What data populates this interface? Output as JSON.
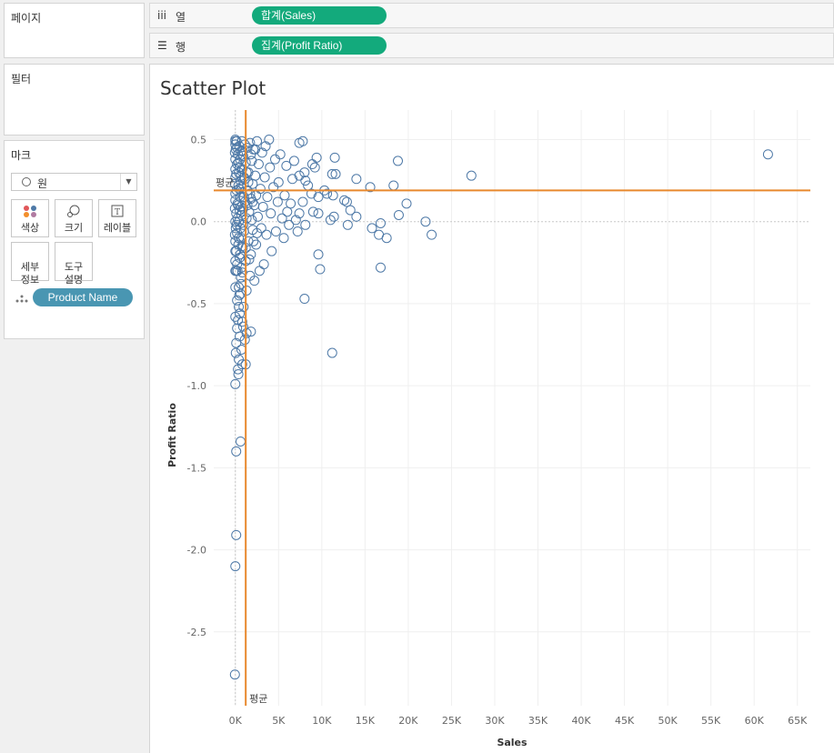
{
  "pages_panel": {
    "title": "페이지"
  },
  "filters_panel": {
    "title": "필터"
  },
  "marks_panel": {
    "title": "마크",
    "mark_type": "원",
    "buttons": [
      {
        "label": "색상",
        "icon": "color-dots-icon"
      },
      {
        "label": "크기",
        "icon": "size-bubble-icon"
      },
      {
        "label": "레이블",
        "icon": "label-T-icon"
      },
      {
        "label": "세부\n정보",
        "icon": ""
      },
      {
        "label": "도구\n설명",
        "icon": ""
      }
    ],
    "detail_field": "Product Name"
  },
  "shelves": {
    "columns": {
      "label": "열",
      "pill": "합계(Sales)"
    },
    "rows": {
      "label": "행",
      "pill": "집계(Profit Ratio)"
    }
  },
  "colors": {
    "pill_green": "#13aa7c",
    "pill_blue": "#4996b2",
    "marker": "#4e79a7",
    "ref_line": "#e8892e"
  },
  "chart_data": {
    "type": "scatter",
    "title": "Scatter Plot",
    "xlabel": "Sales",
    "ylabel": "Profit Ratio",
    "x_ticks": [
      "0K",
      "5K",
      "10K",
      "15K",
      "20K",
      "25K",
      "30K",
      "35K",
      "40K",
      "45K",
      "50K",
      "55K",
      "60K",
      "65K"
    ],
    "y_ticks": [
      "0.5",
      "0.0",
      "-0.5",
      "-1.0",
      "-1.5",
      "-2.0",
      "-2.5"
    ],
    "xlim": [
      -2500,
      66500
    ],
    "ylim": [
      -2.95,
      0.68
    ],
    "grid": true,
    "reference_lines": [
      {
        "axis": "x",
        "value": 1200,
        "label": "평균"
      },
      {
        "axis": "y",
        "value": 0.19,
        "label": "평균"
      }
    ],
    "points": [
      [
        61600,
        0.41
      ],
      [
        27300,
        0.28
      ],
      [
        22700,
        -0.08
      ],
      [
        22000,
        0.0
      ],
      [
        19800,
        0.11
      ],
      [
        18800,
        0.37
      ],
      [
        18900,
        0.04
      ],
      [
        18300,
        0.22
      ],
      [
        17500,
        -0.1
      ],
      [
        16800,
        -0.01
      ],
      [
        16600,
        -0.08
      ],
      [
        16800,
        -0.28
      ],
      [
        15800,
        -0.04
      ],
      [
        15600,
        0.21
      ],
      [
        14000,
        0.26
      ],
      [
        14000,
        0.03
      ],
      [
        13300,
        0.07
      ],
      [
        12900,
        0.12
      ],
      [
        13000,
        -0.02
      ],
      [
        12600,
        0.13
      ],
      [
        11400,
        0.03
      ],
      [
        11300,
        0.16
      ],
      [
        11200,
        0.29
      ],
      [
        11600,
        0.29
      ],
      [
        11500,
        0.39
      ],
      [
        11200,
        -0.8
      ],
      [
        10600,
        0.17
      ],
      [
        11000,
        0.01
      ],
      [
        10300,
        0.19
      ],
      [
        9600,
        0.05
      ],
      [
        9800,
        -0.29
      ],
      [
        9600,
        -0.2
      ],
      [
        9600,
        0.15
      ],
      [
        9400,
        0.39
      ],
      [
        9200,
        0.33
      ],
      [
        8900,
        0.35
      ],
      [
        9000,
        0.06
      ],
      [
        8800,
        0.17
      ],
      [
        8400,
        0.22
      ],
      [
        8100,
        -0.02
      ],
      [
        8100,
        0.25
      ],
      [
        7800,
        0.49
      ],
      [
        7400,
        0.48
      ],
      [
        8000,
        0.3
      ],
      [
        7800,
        0.12
      ],
      [
        7400,
        0.05
      ],
      [
        7200,
        -0.06
      ],
      [
        7000,
        0.01
      ],
      [
        8000,
        -0.47
      ],
      [
        7400,
        0.28
      ],
      [
        6800,
        0.37
      ],
      [
        6600,
        0.26
      ],
      [
        6400,
        0.11
      ],
      [
        6200,
        -0.02
      ],
      [
        6000,
        0.06
      ],
      [
        5900,
        0.34
      ],
      [
        5700,
        0.16
      ],
      [
        5600,
        -0.1
      ],
      [
        5400,
        0.02
      ],
      [
        5200,
        0.41
      ],
      [
        5000,
        0.24
      ],
      [
        4900,
        0.12
      ],
      [
        4700,
        -0.06
      ],
      [
        4600,
        0.38
      ],
      [
        4400,
        0.21
      ],
      [
        4200,
        -0.18
      ],
      [
        4100,
        0.05
      ],
      [
        4000,
        0.33
      ],
      [
        3900,
        0.5
      ],
      [
        3700,
        0.15
      ],
      [
        3600,
        -0.08
      ],
      [
        3500,
        0.46
      ],
      [
        3400,
        0.27
      ],
      [
        3300,
        -0.26
      ],
      [
        3200,
        0.09
      ],
      [
        3100,
        0.42
      ],
      [
        3000,
        -0.04
      ],
      [
        2900,
        0.2
      ],
      [
        2800,
        -0.3
      ],
      [
        2700,
        0.35
      ],
      [
        2600,
        0.03
      ],
      [
        2500,
        0.49
      ],
      [
        2400,
        -0.14
      ],
      [
        2300,
        0.28
      ],
      [
        2200,
        0.1
      ],
      [
        2200,
        -0.36
      ],
      [
        2100,
        0.44
      ],
      [
        2000,
        -0.05
      ],
      [
        2000,
        0.23
      ],
      [
        1900,
        0.37
      ],
      [
        1800,
        -0.2
      ],
      [
        1800,
        0.14
      ],
      [
        1700,
        0.48
      ],
      [
        1700,
        -0.33
      ],
      [
        1600,
        0.06
      ],
      [
        1500,
        0.3
      ],
      [
        1500,
        -0.12
      ],
      [
        1400,
        0.45
      ],
      [
        1400,
        0.19
      ],
      [
        1300,
        -0.42
      ],
      [
        1300,
        0.02
      ],
      [
        1200,
        0.36
      ],
      [
        1200,
        -0.24
      ],
      [
        1100,
        0.12
      ],
      [
        1100,
        0.47
      ],
      [
        1000,
        -0.06
      ],
      [
        1000,
        0.27
      ],
      [
        950,
        -0.52
      ],
      [
        900,
        0.4
      ],
      [
        900,
        0.08
      ],
      [
        850,
        -0.16
      ],
      [
        800,
        0.32
      ],
      [
        800,
        -0.31
      ],
      [
        750,
        0.18
      ],
      [
        750,
        0.49
      ],
      [
        700,
        -0.1
      ],
      [
        700,
        0.04
      ],
      [
        650,
        0.43
      ],
      [
        650,
        -0.38
      ],
      [
        600,
        0.25
      ],
      [
        600,
        -0.04
      ],
      [
        550,
        0.15
      ],
      [
        550,
        0.38
      ],
      [
        500,
        -0.22
      ],
      [
        500,
        0.07
      ],
      [
        450,
        0.46
      ],
      [
        450,
        -0.45
      ],
      [
        400,
        0.3
      ],
      [
        400,
        0.0
      ],
      [
        350,
        -0.14
      ],
      [
        350,
        0.22
      ],
      [
        300,
        0.41
      ],
      [
        300,
        -0.6
      ],
      [
        250,
        0.11
      ],
      [
        250,
        -0.3
      ],
      [
        200,
        0.35
      ],
      [
        200,
        -0.07
      ],
      [
        150,
        0.49
      ],
      [
        150,
        0.19
      ],
      [
        100,
        -0.18
      ],
      [
        100,
        0.05
      ],
      [
        50,
        0.44
      ],
      [
        50,
        -0.04
      ],
      [
        0,
        0.27
      ],
      [
        0,
        0.5
      ],
      [
        0,
        -0.12
      ],
      [
        0,
        0.13
      ],
      [
        0,
        0.38
      ],
      [
        0,
        -0.24
      ],
      [
        0,
        0.0
      ],
      [
        0,
        0.32
      ],
      [
        0,
        0.47
      ],
      [
        -50,
        0.23
      ],
      [
        -50,
        0.08
      ],
      [
        -50,
        -0.08
      ],
      [
        -50,
        0.42
      ],
      [
        0,
        -0.3
      ],
      [
        0,
        0.17
      ],
      [
        0,
        0.49
      ],
      [
        0,
        -0.18
      ],
      [
        100,
        0.29
      ],
      [
        150,
        -0.02
      ],
      [
        200,
        0.45
      ],
      [
        250,
        0.02
      ],
      [
        300,
        0.1
      ],
      [
        350,
        0.36
      ],
      [
        400,
        -0.1
      ],
      [
        450,
        0.2
      ],
      [
        500,
        0.33
      ],
      [
        550,
        -0.2
      ],
      [
        600,
        0.09
      ],
      [
        650,
        0.28
      ],
      [
        700,
        0.21
      ],
      [
        750,
        -0.15
      ],
      [
        800,
        0.06
      ],
      [
        850,
        0.43
      ],
      [
        900,
        -0.02
      ],
      [
        1000,
        0.15
      ],
      [
        1100,
        0.26
      ],
      [
        1200,
        -0.16
      ],
      [
        1300,
        0.3
      ],
      [
        1400,
        0.1
      ],
      [
        1500,
        0.24
      ],
      [
        1600,
        -0.23
      ],
      [
        1700,
        0.17
      ],
      [
        1800,
        0.41
      ],
      [
        1900,
        0.01
      ],
      [
        2000,
        0.12
      ],
      [
        2100,
        -0.12
      ],
      [
        2300,
        0.44
      ],
      [
        2400,
        0.16
      ],
      [
        2500,
        -0.07
      ],
      [
        1300,
        -0.68
      ],
      [
        1100,
        -0.72
      ],
      [
        700,
        -0.78
      ],
      [
        400,
        -0.84
      ],
      [
        300,
        -0.9
      ],
      [
        800,
        -0.87
      ],
      [
        900,
        -0.64
      ],
      [
        500,
        -0.56
      ],
      [
        200,
        -0.65
      ],
      [
        100,
        -0.74
      ],
      [
        50,
        -0.8
      ],
      [
        0,
        -0.99
      ],
      [
        350,
        -0.93
      ],
      [
        1200,
        -0.87
      ],
      [
        500,
        -0.7
      ],
      [
        800,
        -0.61
      ],
      [
        0,
        -0.58
      ],
      [
        200,
        -0.48
      ],
      [
        600,
        -0.44
      ],
      [
        400,
        -0.4
      ],
      [
        1800,
        -0.67
      ],
      [
        600,
        -1.34
      ],
      [
        100,
        -1.4
      ],
      [
        100,
        -1.91
      ],
      [
        0,
        -2.1
      ],
      [
        -50,
        -2.76
      ],
      [
        0,
        -0.4
      ],
      [
        100,
        -0.3
      ],
      [
        200,
        -0.26
      ],
      [
        400,
        -0.52
      ],
      [
        650,
        -0.34
      ],
      [
        700,
        -0.28
      ]
    ]
  }
}
